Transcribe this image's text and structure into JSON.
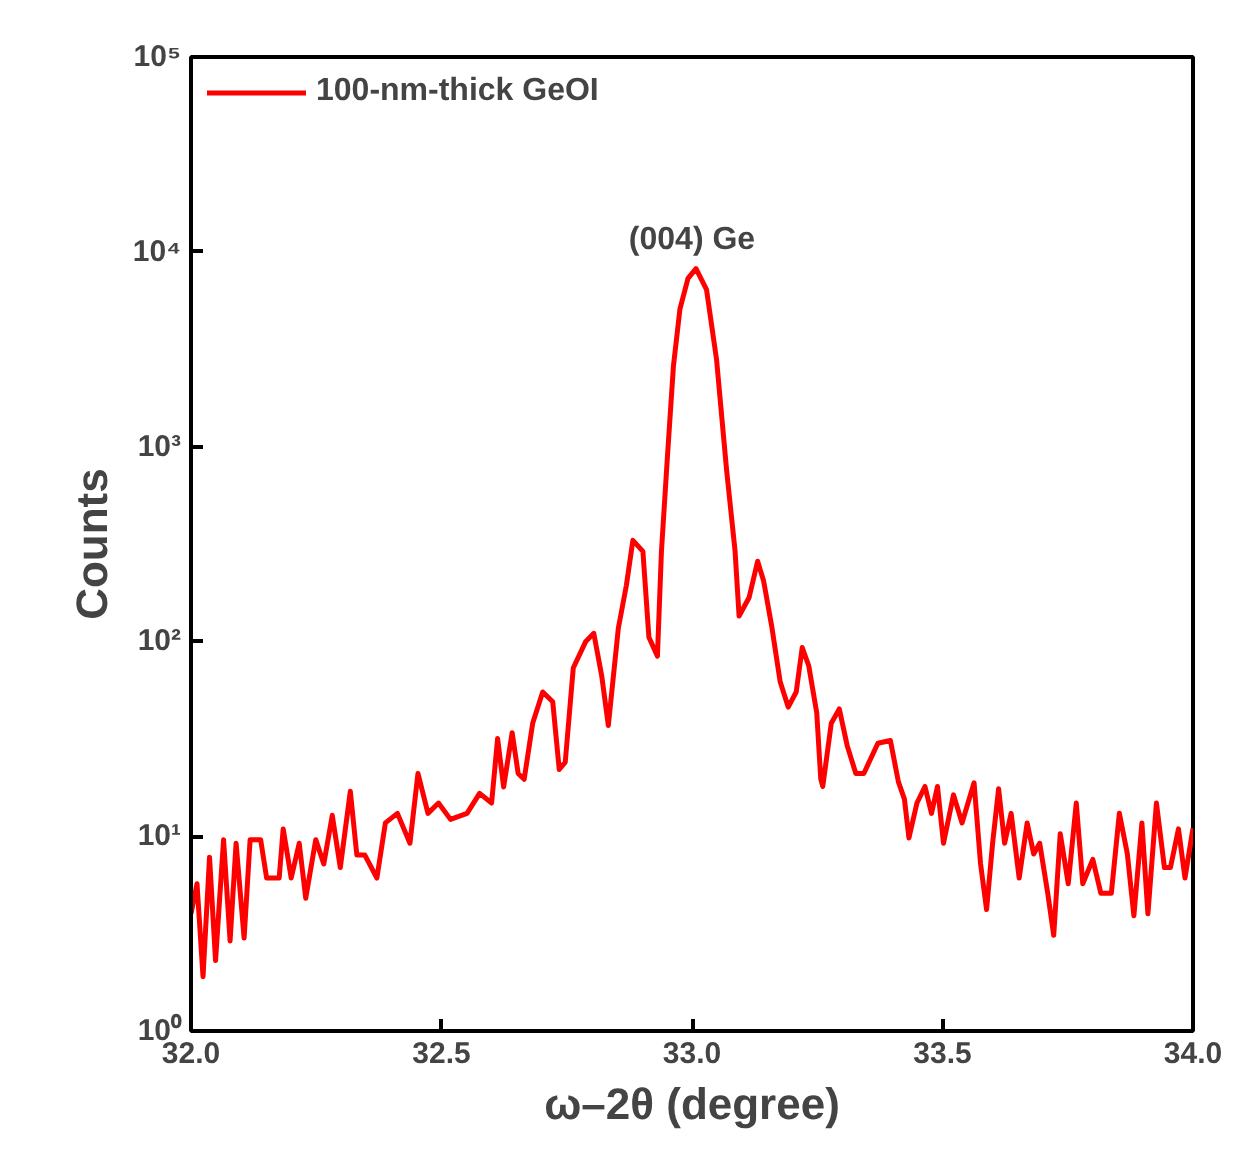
{
  "chart_data": {
    "type": "line",
    "xlabel": "ω–2θ (degree)",
    "ylabel": "Counts",
    "x": [
      32.0,
      32.012,
      32.024,
      32.037,
      32.049,
      32.065,
      32.078,
      32.09,
      32.106,
      32.118,
      32.139,
      32.151,
      32.176,
      32.184,
      32.2,
      32.216,
      32.229,
      32.249,
      32.265,
      32.282,
      32.298,
      32.318,
      32.331,
      32.347,
      32.371,
      32.388,
      32.412,
      32.437,
      32.453,
      32.473,
      32.494,
      32.518,
      32.551,
      32.576,
      32.6,
      32.612,
      32.624,
      32.641,
      32.653,
      32.665,
      32.682,
      32.702,
      32.722,
      32.735,
      32.747,
      32.763,
      32.788,
      32.804,
      32.82,
      32.833,
      32.853,
      32.869,
      32.882,
      32.902,
      32.914,
      32.931,
      32.939,
      32.951,
      32.963,
      32.976,
      32.992,
      33.008,
      33.029,
      33.049,
      33.069,
      33.086,
      33.094,
      33.114,
      33.131,
      33.143,
      33.159,
      33.176,
      33.192,
      33.208,
      33.22,
      33.233,
      33.249,
      33.257,
      33.261,
      33.278,
      33.294,
      33.31,
      33.327,
      33.343,
      33.371,
      33.396,
      33.412,
      33.424,
      33.433,
      33.449,
      33.465,
      33.478,
      33.49,
      33.502,
      33.522,
      33.539,
      33.563,
      33.576,
      33.588,
      33.6,
      33.612,
      33.624,
      33.637,
      33.653,
      33.669,
      33.682,
      33.694,
      33.71,
      33.722,
      33.735,
      33.751,
      33.767,
      33.78,
      33.8,
      33.816,
      33.837,
      33.853,
      33.869,
      33.882,
      33.898,
      33.91,
      33.927,
      33.943,
      33.955,
      33.971,
      33.984,
      34.0
    ],
    "series": [
      {
        "name": "100-nm-thick GeOI",
        "color": "#ff0000",
        "values": [
          4.0,
          5.7,
          1.9,
          7.8,
          2.3,
          9.6,
          2.9,
          9.2,
          3.0,
          9.6,
          9.6,
          6.1,
          6.1,
          10.9,
          6.1,
          9.2,
          4.8,
          9.6,
          7.2,
          12.8,
          6.9,
          17,
          8,
          8,
          6.1,
          11.7,
          13.1,
          9.2,
          21,
          13.1,
          14.8,
          12.2,
          13.1,
          16.6,
          14.8,
          31.7,
          17.9,
          34,
          21,
          19.6,
          38,
          55,
          49,
          22,
          24,
          73,
          100,
          110,
          66,
          37,
          117,
          194,
          330,
          290,
          105,
          84,
          290,
          890,
          2600,
          5100,
          7300,
          8200,
          6400,
          2800,
          760,
          290,
          135,
          168,
          258,
          204,
          120,
          62,
          46,
          55,
          93,
          75,
          43,
          19.7,
          18,
          38,
          45,
          29,
          21,
          21,
          30,
          31,
          19,
          15.5,
          9.8,
          14.8,
          18,
          13.1,
          18,
          9.2,
          16.3,
          11.7,
          18.8,
          7.2,
          4.2,
          9.2,
          17.5,
          9.2,
          13.1,
          6.1,
          11.7,
          8.1,
          9.2,
          5.1,
          3.1,
          10.3,
          5.7,
          14.8,
          5.7,
          7.6,
          5.1,
          5.1,
          13.1,
          8.1,
          3.9,
          11.7,
          4.0,
          14.8,
          6.9,
          6.9,
          10.9,
          6.1,
          11
        ]
      }
    ],
    "xlim": [
      32.0,
      34.0
    ],
    "xticks": [
      {
        "value": 32.0,
        "label": "32.0"
      },
      {
        "value": 32.5,
        "label": "32.5"
      },
      {
        "value": 33.0,
        "label": "33.0"
      },
      {
        "value": 33.5,
        "label": "33.5"
      },
      {
        "value": 34.0,
        "label": "34.0"
      }
    ],
    "ylim": [
      1,
      100000
    ],
    "yticks": [
      {
        "value": 1,
        "label": "10⁰"
      },
      {
        "value": 10,
        "label": "10¹"
      },
      {
        "value": 100,
        "label": "10²"
      },
      {
        "value": 1000,
        "label": "10³"
      },
      {
        "value": 10000,
        "label": "10⁴"
      },
      {
        "value": 100000,
        "label": "10⁵"
      }
    ],
    "log": "y",
    "grid": false,
    "legend": "top left",
    "marker": "none",
    "line_style": "solid",
    "annotations": [
      {
        "text": "(004) Ge",
        "x": 33.0,
        "y": 8200
      }
    ]
  }
}
